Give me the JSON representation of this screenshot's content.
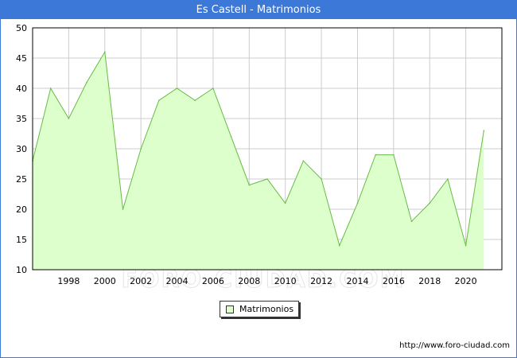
{
  "window": {
    "title": "Es Castell - Matrimonios"
  },
  "footer": {
    "source": "http://www.foro-ciudad.com"
  },
  "watermark": "FORO-CIUDAD.COM",
  "colors": {
    "header": "#3c78d8",
    "area_fill": "#ddffcc",
    "area_line": "#66bb44",
    "grid": "#cccccc",
    "axis": "#000000"
  },
  "chart_data": {
    "type": "area",
    "title": "Es Castell - Matrimonios",
    "xlabel": "",
    "ylabel": "",
    "x": [
      1996,
      1997,
      1998,
      1999,
      2000,
      2001,
      2002,
      2003,
      2004,
      2005,
      2006,
      2007,
      2008,
      2009,
      2010,
      2011,
      2012,
      2013,
      2014,
      2015,
      2016,
      2017,
      2018,
      2019,
      2020,
      2021
    ],
    "xlim": [
      1996,
      2022
    ],
    "ylim": [
      10,
      50
    ],
    "x_ticks": [
      1998,
      2000,
      2002,
      2004,
      2006,
      2008,
      2010,
      2012,
      2014,
      2016,
      2018,
      2020
    ],
    "y_ticks": [
      10,
      15,
      20,
      25,
      30,
      35,
      40,
      45,
      50
    ],
    "grid": true,
    "legend_position": "bottom-center",
    "series": [
      {
        "name": "Matrimonios",
        "values": [
          28,
          40,
          35,
          41,
          46,
          20,
          30,
          38,
          40,
          38,
          40,
          32,
          24,
          25,
          21,
          28,
          25,
          14,
          21,
          29,
          29,
          18,
          21,
          25,
          14,
          33
        ]
      }
    ]
  }
}
